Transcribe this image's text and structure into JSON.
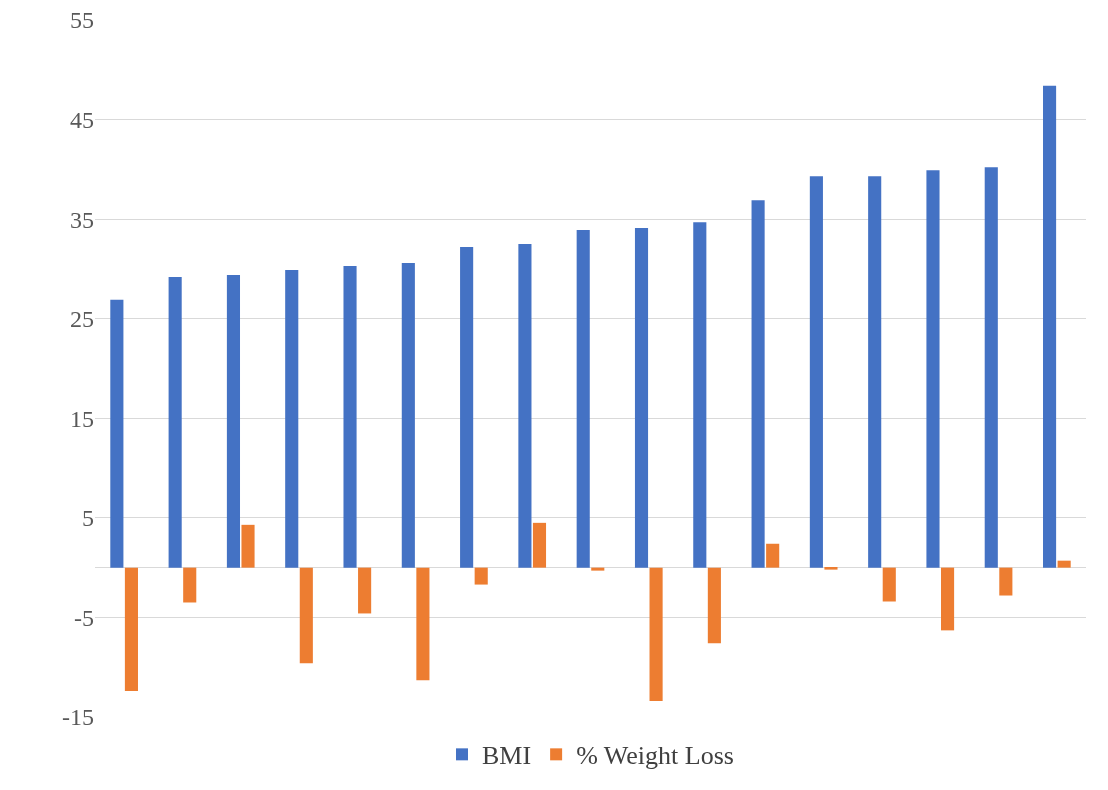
{
  "chart_data": {
    "type": "bar",
    "categories": [
      null,
      null,
      null,
      null,
      null,
      null,
      null,
      null,
      null,
      null,
      null,
      null,
      null,
      null,
      null,
      null,
      null
    ],
    "series": [
      {
        "name": "BMI",
        "color": "#4472c4",
        "values": [
          26.9,
          29.2,
          29.4,
          29.9,
          30.3,
          30.6,
          32.2,
          32.5,
          33.9,
          34.1,
          34.7,
          36.9,
          39.3,
          39.3,
          39.9,
          40.2,
          48.4
        ]
      },
      {
        "name": "% Weight Loss",
        "color": "#ed7d31",
        "values": [
          -12.4,
          -3.5,
          4.3,
          -9.6,
          -4.6,
          -11.3,
          -1.7,
          4.5,
          -0.3,
          -13.4,
          -7.6,
          2.4,
          -0.2,
          -3.4,
          -6.3,
          -2.8,
          0.7
        ]
      }
    ],
    "ylim": [
      -15,
      55
    ],
    "yticks": [
      -15,
      -5,
      5,
      15,
      25,
      35,
      45,
      55
    ],
    "grid": "y",
    "legend": "bottom",
    "tick_labels": "y"
  }
}
